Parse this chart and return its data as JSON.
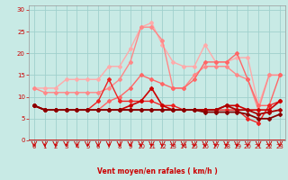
{
  "xlabel": "Vent moyen/en rafales ( km/h )",
  "background_color": "#c8eae5",
  "grid_color": "#a0d0cc",
  "x_ticks": [
    0,
    1,
    2,
    3,
    4,
    5,
    6,
    7,
    8,
    9,
    10,
    11,
    12,
    13,
    14,
    15,
    16,
    17,
    18,
    19,
    20,
    21,
    22,
    23
  ],
  "ylim": [
    0,
    31
  ],
  "yticks": [
    0,
    5,
    10,
    15,
    20,
    25,
    30
  ],
  "lines": [
    {
      "x": [
        0,
        1,
        2,
        3,
        4,
        5,
        6,
        7,
        8,
        9,
        10,
        11,
        12,
        13,
        14,
        15,
        16,
        17,
        18,
        19,
        20,
        21,
        22,
        23
      ],
      "y": [
        12,
        12,
        12,
        14,
        14,
        14,
        14,
        17,
        17,
        21,
        26,
        27,
        22,
        18,
        17,
        17,
        22,
        18,
        18,
        19,
        19,
        8,
        15,
        15
      ],
      "color": "#ffaaaa",
      "lw": 1.0,
      "marker": "D",
      "ms": 2.0
    },
    {
      "x": [
        0,
        1,
        2,
        3,
        4,
        5,
        6,
        7,
        8,
        9,
        10,
        11,
        12,
        13,
        14,
        15,
        16,
        17,
        18,
        19,
        20,
        21,
        22,
        23
      ],
      "y": [
        12,
        11,
        11,
        11,
        11,
        11,
        11,
        12,
        14,
        18,
        26,
        26,
        23,
        12,
        12,
        15,
        17,
        17,
        17,
        15,
        14,
        7,
        15,
        15
      ],
      "color": "#ff8888",
      "lw": 1.0,
      "marker": "D",
      "ms": 2.0
    },
    {
      "x": [
        0,
        1,
        2,
        3,
        4,
        5,
        6,
        7,
        8,
        9,
        10,
        11,
        12,
        13,
        14,
        15,
        16,
        17,
        18,
        19,
        20,
        21,
        22,
        23
      ],
      "y": [
        8,
        7,
        7,
        7,
        7,
        7,
        7,
        9,
        10,
        12,
        15,
        14,
        13,
        12,
        12,
        14,
        18,
        18,
        18,
        20,
        14,
        8,
        8,
        15
      ],
      "color": "#ff6666",
      "lw": 1.0,
      "marker": "D",
      "ms": 2.0
    },
    {
      "x": [
        0,
        1,
        2,
        3,
        4,
        5,
        6,
        7,
        8,
        9,
        10,
        11,
        12,
        13,
        14,
        15,
        16,
        17,
        18,
        19,
        20,
        21,
        22,
        23
      ],
      "y": [
        8,
        7,
        7,
        7,
        7,
        7,
        9,
        14,
        9,
        9,
        9,
        9,
        8,
        8,
        7,
        7,
        7,
        7,
        7,
        7,
        5,
        4,
        8,
        9
      ],
      "color": "#ee2222",
      "lw": 1.0,
      "marker": "D",
      "ms": 2.0
    },
    {
      "x": [
        0,
        1,
        2,
        3,
        4,
        5,
        6,
        7,
        8,
        9,
        10,
        11,
        12,
        13,
        14,
        15,
        16,
        17,
        18,
        19,
        20,
        21,
        22,
        23
      ],
      "y": [
        8,
        7,
        7,
        7,
        7,
        7,
        7,
        7,
        7,
        8,
        9,
        12,
        8,
        7,
        7,
        7,
        7,
        7,
        8,
        8,
        7,
        7,
        7,
        9
      ],
      "color": "#cc0000",
      "lw": 1.2,
      "marker": "D",
      "ms": 2.0
    },
    {
      "x": [
        0,
        1,
        2,
        3,
        4,
        5,
        6,
        7,
        8,
        9,
        10,
        11,
        12,
        13,
        14,
        15,
        16,
        17,
        18,
        19,
        20,
        21,
        22,
        23
      ],
      "y": [
        8,
        7,
        7,
        7,
        7,
        7,
        7,
        7,
        7,
        7,
        7,
        7,
        7,
        7,
        7,
        7,
        7,
        7,
        8,
        7,
        7,
        6,
        6.5,
        7
      ],
      "color": "#aa0000",
      "lw": 1.3,
      "marker": "D",
      "ms": 2.0
    },
    {
      "x": [
        0,
        1,
        2,
        3,
        4,
        5,
        6,
        7,
        8,
        9,
        10,
        11,
        12,
        13,
        14,
        15,
        16,
        17,
        18,
        19,
        20,
        21,
        22,
        23
      ],
      "y": [
        8,
        7,
        7,
        7,
        7,
        7,
        7,
        7,
        7,
        7,
        7,
        7,
        7,
        7,
        7,
        7,
        6.5,
        6.5,
        6.5,
        6.5,
        6,
        5,
        5,
        6
      ],
      "color": "#880000",
      "lw": 1.3,
      "marker": "D",
      "ms": 2.0
    }
  ],
  "arrow_color": "#cc0000",
  "axis_line_color": "#cc0000",
  "tick_label_color": "#cc0000",
  "tick_label_size": 5
}
